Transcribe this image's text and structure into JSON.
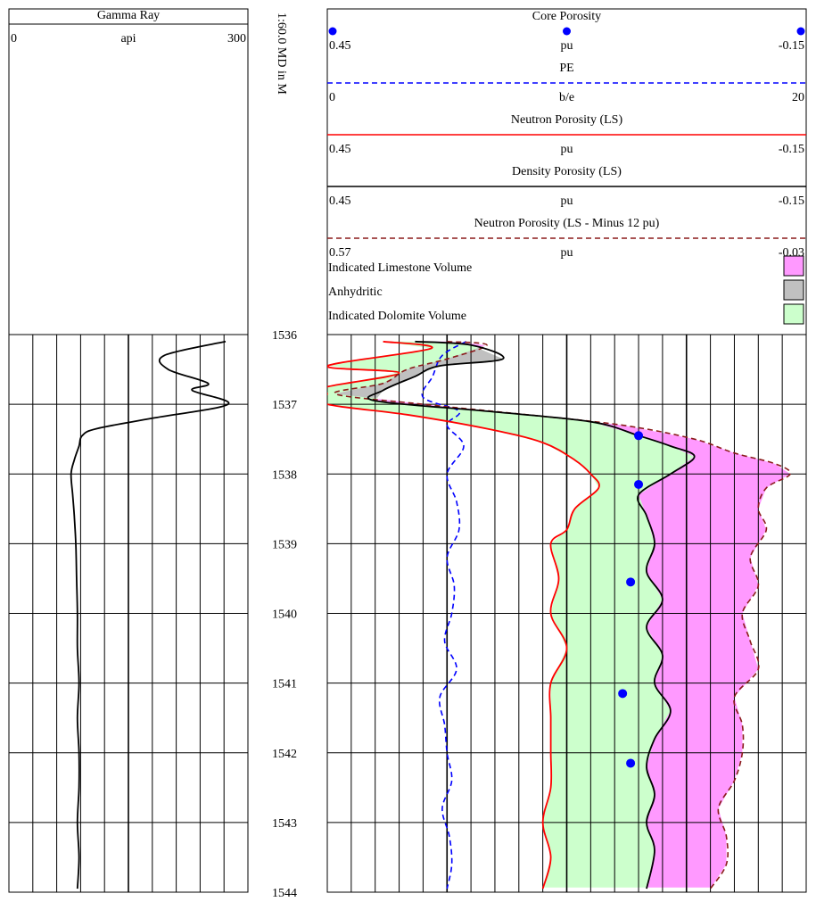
{
  "depth_scale_label": "1:60.0 MD in M",
  "gamma_track": {
    "title": "Gamma Ray",
    "unit": "api",
    "min_label": "0",
    "max_label": "300"
  },
  "header_curves": [
    {
      "name": "Core Porosity",
      "unit": "pu",
      "left": "0.45",
      "right": "-0.15",
      "style": "dots",
      "color": "#0000ff"
    },
    {
      "name": "PE",
      "unit": "b/e",
      "left": "0",
      "right": "20",
      "style": "dashed",
      "color": "#0000ff"
    },
    {
      "name": "Neutron Porosity (LS)",
      "unit": "pu",
      "left": "0.45",
      "right": "-0.15",
      "style": "solid",
      "color": "#ff0000"
    },
    {
      "name": "Density Porosity (LS)",
      "unit": "pu",
      "left": "0.45",
      "right": "-0.15",
      "style": "solid",
      "color": "#000000"
    },
    {
      "name": "Neutron Porosity (LS - Minus 12 pu)",
      "unit": "pu",
      "left": "0.57",
      "right": "-0.03",
      "style": "dashed",
      "color": "#8b1a1a"
    }
  ],
  "fill_legend": [
    {
      "label": "Indicated Limestone Volume",
      "color": "#ff99ff"
    },
    {
      "label": "Anhydritic",
      "color": "#c0c0c0"
    },
    {
      "label": "Indicated Dolomite Volume",
      "color": "#ccffcc"
    }
  ],
  "depth_labels": [
    "1536",
    "1537",
    "1538",
    "1539",
    "1540",
    "1541",
    "1542",
    "1543",
    "1544"
  ],
  "chart_data": {
    "type": "line",
    "depth_range": [
      1536,
      1544
    ],
    "depth_unit": "M",
    "series": [
      {
        "name": "Gamma Ray",
        "unit": "api",
        "range": [
          0,
          300
        ],
        "color": "#000000",
        "depth": [
          1536.1,
          1536.3,
          1536.5,
          1536.7,
          1536.8,
          1537.0,
          1537.2,
          1537.35,
          1537.45,
          1537.6,
          1537.8,
          1538.0,
          1538.3,
          1538.6,
          1539.0,
          1539.5,
          1540.0,
          1540.5,
          1541.0,
          1541.5,
          1542.0,
          1542.5,
          1543.0,
          1543.5,
          1543.95
        ],
        "values": [
          272,
          195,
          200,
          250,
          230,
          275,
          180,
          110,
          92,
          88,
          82,
          78,
          80,
          82,
          84,
          85,
          86,
          86,
          88,
          86,
          88,
          88,
          86,
          88,
          86
        ]
      },
      {
        "name": "Core Porosity",
        "unit": "pu",
        "range": [
          0.45,
          -0.15
        ],
        "color": "#0000ff",
        "depth": [
          1537.45,
          1538.15,
          1539.55,
          1541.15,
          1542.15
        ],
        "values": [
          0.06,
          0.06,
          0.07,
          0.08,
          0.07
        ]
      },
      {
        "name": "PE",
        "unit": "b/e",
        "range": [
          0,
          20
        ],
        "color": "#0000ff",
        "depth": [
          1536.1,
          1536.3,
          1536.6,
          1536.9,
          1537.1,
          1537.3,
          1537.6,
          1538.0,
          1538.4,
          1538.8,
          1539.2,
          1539.6,
          1540.0,
          1540.4,
          1540.8,
          1541.2,
          1541.6,
          1542.0,
          1542.4,
          1542.8,
          1543.2,
          1543.6,
          1543.95
        ],
        "values": [
          5.8,
          4.8,
          4.4,
          4.0,
          5.5,
          5.0,
          5.7,
          5.0,
          5.4,
          5.5,
          5.0,
          5.3,
          5.2,
          4.9,
          5.4,
          4.7,
          4.9,
          5.0,
          5.2,
          4.8,
          5.1,
          5.2,
          5.0
        ]
      },
      {
        "name": "Neutron Porosity (LS)",
        "unit": "pu",
        "range": [
          0.45,
          -0.15
        ],
        "color": "#ff0000",
        "depth": [
          1536.1,
          1536.2,
          1536.45,
          1536.55,
          1536.75,
          1536.85,
          1537.0,
          1537.15,
          1537.35,
          1537.55,
          1537.8,
          1538.0,
          1538.2,
          1538.5,
          1538.8,
          1539.0,
          1539.5,
          1540.0,
          1540.5,
          1541.0,
          1541.5,
          1542.0,
          1542.5,
          1543.0,
          1543.5,
          1543.95
        ],
        "values": [
          0.38,
          0.32,
          0.45,
          0.36,
          0.45,
          0.45,
          0.45,
          0.35,
          0.25,
          0.18,
          0.14,
          0.12,
          0.11,
          0.14,
          0.15,
          0.17,
          0.16,
          0.17,
          0.15,
          0.17,
          0.17,
          0.17,
          0.17,
          0.18,
          0.17,
          0.18
        ]
      },
      {
        "name": "Density Porosity (LS)",
        "unit": "pu",
        "range": [
          0.45,
          -0.15
        ],
        "color": "#000000",
        "depth": [
          1536.1,
          1536.15,
          1536.35,
          1536.45,
          1536.6,
          1536.8,
          1536.95,
          1537.1,
          1537.25,
          1537.45,
          1537.6,
          1537.75,
          1538.0,
          1538.3,
          1538.6,
          1539.0,
          1539.4,
          1539.8,
          1540.2,
          1540.6,
          1541.0,
          1541.4,
          1541.8,
          1542.2,
          1542.6,
          1543.0,
          1543.4,
          1543.95
        ],
        "values": [
          0.34,
          0.27,
          0.23,
          0.31,
          0.34,
          0.38,
          0.39,
          0.25,
          0.12,
          0.06,
          0.02,
          -0.01,
          0.02,
          0.06,
          0.05,
          0.04,
          0.05,
          0.03,
          0.05,
          0.03,
          0.04,
          0.02,
          0.04,
          0.05,
          0.04,
          0.05,
          0.04,
          0.05
        ]
      },
      {
        "name": "Neutron Porosity (LS - Minus 12 pu)",
        "unit": "pu",
        "range": [
          0.57,
          -0.03
        ],
        "color": "#8b1a1a",
        "depth": [
          1536.1,
          1536.15,
          1536.35,
          1536.5,
          1536.7,
          1536.85,
          1537.0,
          1537.15,
          1537.3,
          1537.5,
          1537.7,
          1537.85,
          1538.0,
          1538.2,
          1538.5,
          1538.8,
          1539.2,
          1539.6,
          1540.0,
          1540.4,
          1540.8,
          1541.2,
          1541.6,
          1542.0,
          1542.4,
          1542.8,
          1543.2,
          1543.6,
          1543.95
        ],
        "values": [
          0.42,
          0.37,
          0.42,
          0.47,
          0.5,
          0.56,
          0.45,
          0.32,
          0.2,
          0.11,
          0.06,
          0.01,
          -0.01,
          0.02,
          0.03,
          0.02,
          0.04,
          0.03,
          0.05,
          0.04,
          0.03,
          0.06,
          0.05,
          0.05,
          0.06,
          0.08,
          0.07,
          0.07,
          0.09
        ]
      }
    ]
  }
}
